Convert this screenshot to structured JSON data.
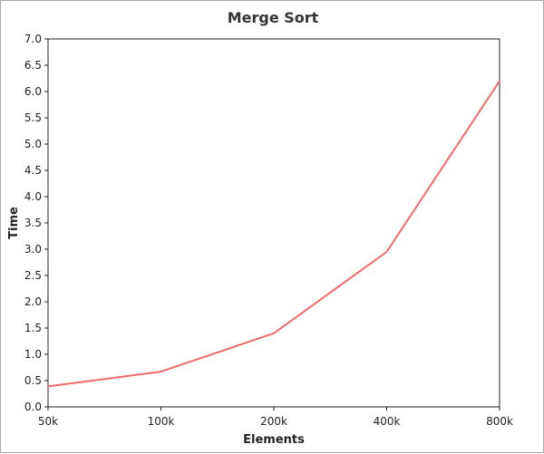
{
  "chart_data": {
    "type": "line",
    "title": "Merge Sort",
    "xlabel": "Elements",
    "ylabel": "Time",
    "categories": [
      "50k",
      "100k",
      "200k",
      "400k",
      "800k"
    ],
    "series": [
      {
        "values": [
          0.39,
          0.67,
          1.4,
          2.95,
          6.2
        ],
        "color": "#f06b6b"
      }
    ],
    "ylim": [
      0.0,
      7.0
    ],
    "yticks": [
      "0.0",
      "0.5",
      "1.0",
      "1.5",
      "2.0",
      "2.5",
      "3.0",
      "3.5",
      "4.0",
      "4.5",
      "5.0",
      "5.5",
      "6.0",
      "6.5",
      "7.0"
    ],
    "grid": false,
    "legend": "none"
  }
}
